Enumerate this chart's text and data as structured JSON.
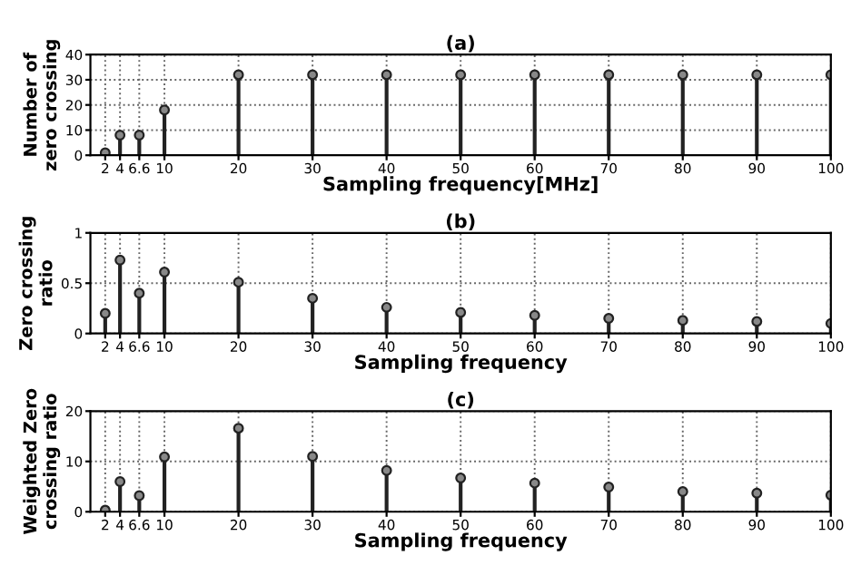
{
  "chart_data": [
    {
      "type": "lollipop",
      "title": "(a)",
      "xlabel": "Sampling frequency[MHz]",
      "ylabel": "Number of\nzero crossing",
      "x": [
        2,
        4,
        6.6,
        10,
        20,
        30,
        40,
        50,
        60,
        70,
        80,
        90,
        100
      ],
      "series": [
        {
          "color": "#222222",
          "values": [
            1,
            8,
            8,
            18,
            32,
            32,
            32,
            32,
            32,
            32,
            32,
            32,
            32
          ]
        }
      ],
      "xlim": [
        0,
        100
      ],
      "xticks": [
        2,
        4,
        6.6,
        10,
        20,
        30,
        40,
        50,
        60,
        70,
        80,
        90,
        100
      ],
      "ylim": [
        0,
        40
      ],
      "yticks": [
        0,
        10,
        20,
        30,
        40
      ],
      "grid": true,
      "marker": "circle",
      "legend": false
    },
    {
      "type": "lollipop",
      "title": "(b)",
      "xlabel": "Sampling frequency",
      "ylabel": "Zero crossing\nratio",
      "x": [
        2,
        4,
        6.6,
        10,
        20,
        30,
        40,
        50,
        60,
        70,
        80,
        90,
        100
      ],
      "series": [
        {
          "color": "#222222",
          "values": [
            0.2,
            0.73,
            0.4,
            0.61,
            0.51,
            0.35,
            0.26,
            0.21,
            0.18,
            0.15,
            0.13,
            0.12,
            0.1
          ]
        }
      ],
      "xlim": [
        0,
        100
      ],
      "xticks": [
        2,
        4,
        6.6,
        10,
        20,
        30,
        40,
        50,
        60,
        70,
        80,
        90,
        100
      ],
      "ylim": [
        0,
        1
      ],
      "yticks": [
        0,
        0.5,
        1
      ],
      "grid": true,
      "marker": "circle",
      "legend": false
    },
    {
      "type": "lollipop",
      "title": "(c)",
      "xlabel": "Sampling frequency",
      "ylabel": "Weighted Zero\ncrossing ratio",
      "x": [
        2,
        4,
        6.6,
        10,
        20,
        30,
        40,
        50,
        60,
        70,
        80,
        90,
        100
      ],
      "series": [
        {
          "color": "#222222",
          "values": [
            0.3,
            6,
            3.2,
            10.9,
            16.6,
            11,
            8.2,
            6.7,
            5.7,
            4.9,
            4,
            3.7,
            3.3
          ]
        }
      ],
      "xlim": [
        0,
        100
      ],
      "xticks": [
        2,
        4,
        6.6,
        10,
        20,
        30,
        40,
        50,
        60,
        70,
        80,
        90,
        100
      ],
      "ylim": [
        0,
        20
      ],
      "yticks": [
        0,
        10,
        20
      ],
      "grid": true,
      "marker": "circle",
      "legend": false
    }
  ]
}
